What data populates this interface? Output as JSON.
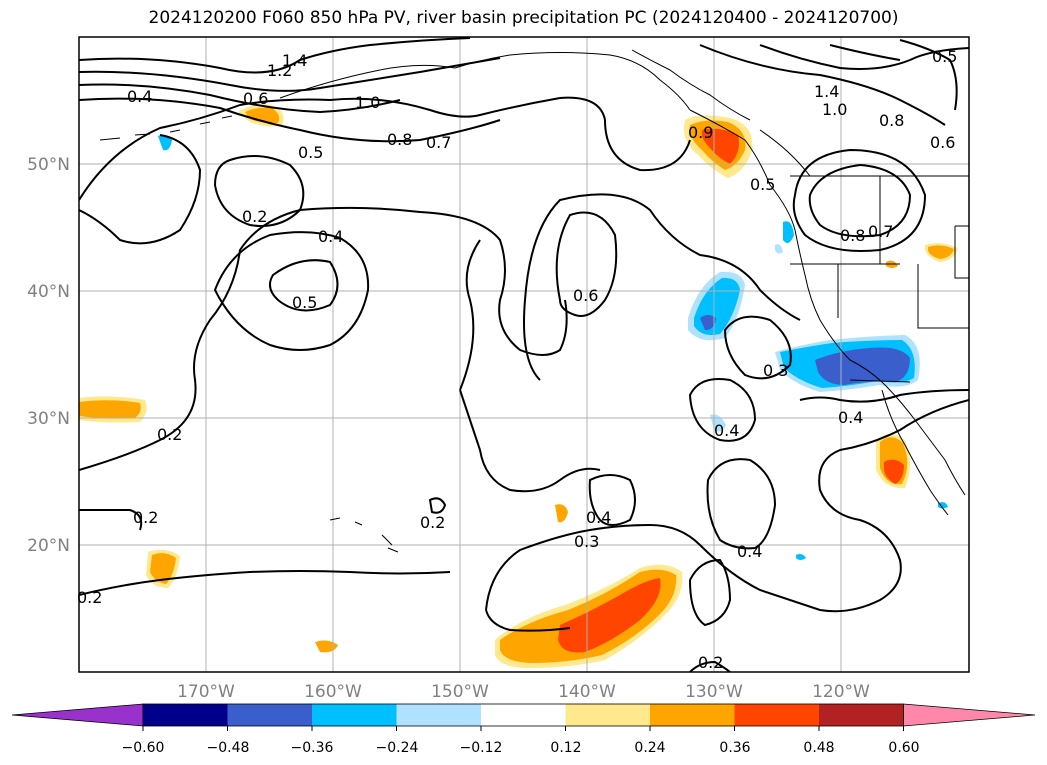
{
  "title": "2024120200 F060 850 hPa PV, river basin precipitation PC (2024120400 - 2024120700)",
  "lon_ticks": [
    "170°W",
    "160°W",
    "150°W",
    "140°W",
    "130°W",
    "120°W"
  ],
  "lat_ticks": [
    "50°N",
    "40°N",
    "30°N",
    "20°N"
  ],
  "colorbar": {
    "tick_labels": [
      "−0.60",
      "−0.48",
      "−0.36",
      "−0.24",
      "−0.12",
      "0.12",
      "0.24",
      "0.36",
      "0.48",
      "0.60"
    ],
    "colors": [
      "#9932cc",
      "#00008b",
      "#3a5fcd",
      "#00bfff",
      "#b0e2ff",
      "#ffffff",
      "#ffe98c",
      "#ffa500",
      "#ff4500",
      "#b22222",
      "#ff88aa"
    ]
  },
  "contour_labels": [
    "1.4",
    "1.2",
    "0.4",
    "0.6",
    "1.0",
    "0.8",
    "0.7",
    "0.5",
    "0.2",
    "0.4",
    "0.5",
    "0.6",
    "0.9",
    "0.5",
    "1.4",
    "1.0",
    "0.8",
    "0.6",
    "0.5",
    "0.8",
    "0.7",
    "0.3",
    "0.4",
    "0.4",
    "0.2",
    "0.2",
    "0.2",
    "0.2",
    "0.4",
    "0.3",
    "0.4",
    "0.2"
  ],
  "chart_data": {
    "type": "map",
    "projection": "lat-lon",
    "lon_range": [
      -180,
      -110
    ],
    "lat_range": [
      10,
      60
    ],
    "contour_field": "850 hPa PV",
    "shaded_field": "river basin precipitation PC",
    "levels": [
      -0.6,
      -0.48,
      -0.36,
      -0.24,
      -0.12,
      0.12,
      0.24,
      0.36,
      0.48,
      0.6
    ]
  }
}
